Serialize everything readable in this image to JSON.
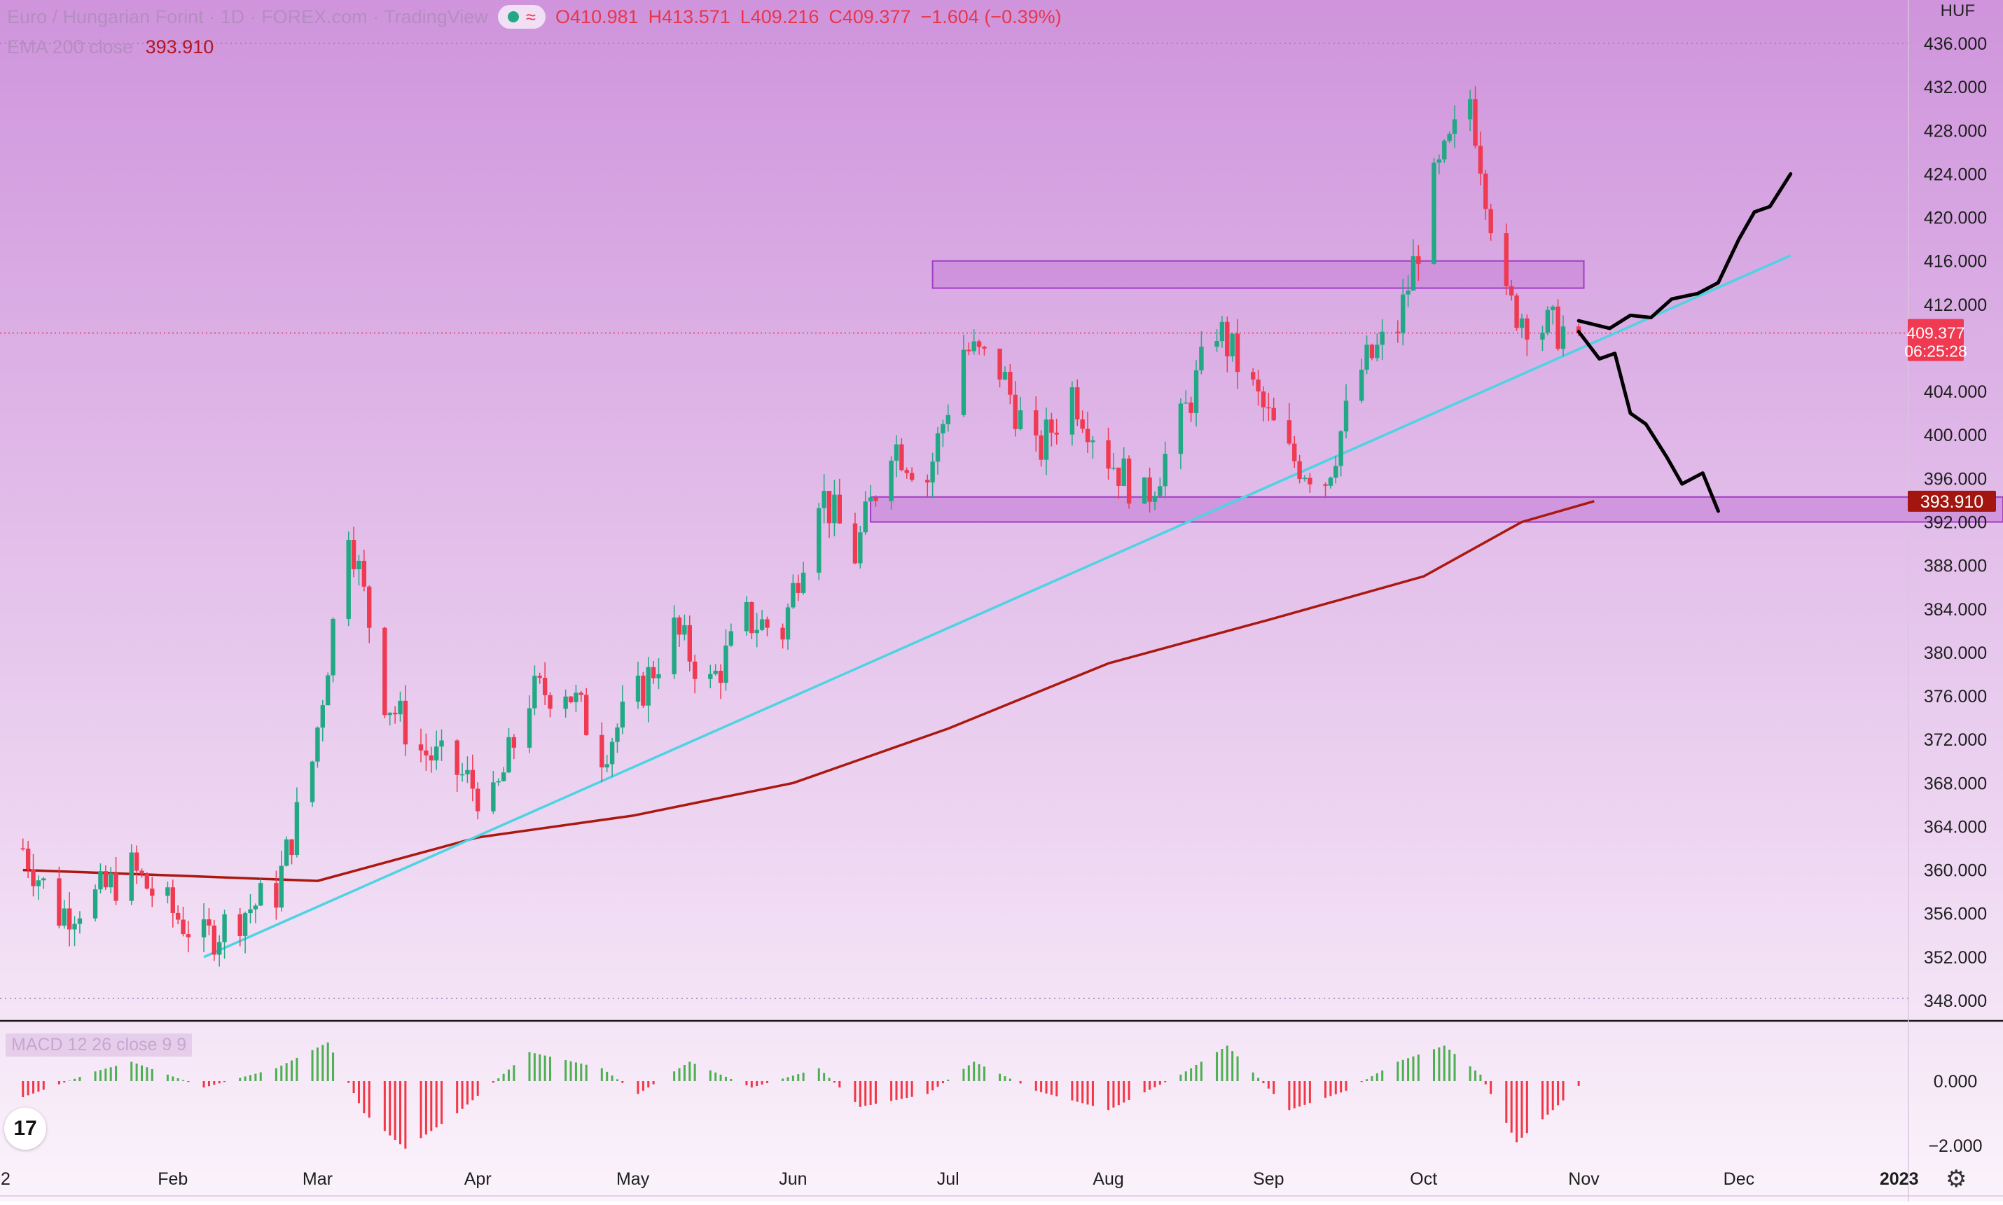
{
  "header": {
    "symbol": "Euro / Hungarian Forint · 1D · FOREX.com · TradingView",
    "open": "O410.981",
    "high": "H413.571",
    "low": "L409.216",
    "close": "C409.377",
    "change": "−1.604 (−0.39%)"
  },
  "ema": {
    "label": "EMA 200 close",
    "value": "393.910"
  },
  "macd": {
    "label": "MACD 12 26 close 9 9"
  },
  "axis": {
    "currency": "HUF"
  },
  "price_tags": {
    "last": "409.377",
    "countdown": "06:25:28",
    "ema": "393.910"
  },
  "colors": {
    "bg_top": "#cf94dc",
    "bg_bottom": "#fbf3fb",
    "up": "#22a884",
    "down": "#ef3a52",
    "ema": "#aa1810",
    "trendline": "#4ed3e2",
    "zone_fill": "#cd8fdc",
    "zone_stroke": "#a13bc4",
    "projection": "#000000"
  },
  "chart_data": {
    "type": "candlestick",
    "title": "Euro / Hungarian Forint · 1D · FOREX.com · TradingView",
    "price_axis": {
      "min": 346,
      "max": 438,
      "ticks": [
        436.0,
        432.0,
        428.0,
        424.0,
        420.0,
        416.0,
        412.0,
        404.0,
        400.0,
        396.0,
        392.0,
        388.0,
        384.0,
        380.0,
        376.0,
        372.0,
        368.0,
        364.0,
        360.0,
        356.0,
        352.0,
        348.0
      ],
      "tick_labels": [
        "436.000",
        "432.000",
        "428.000",
        "424.000",
        "420.000",
        "416.000",
        "412.000",
        "404.000",
        "400.000",
        "396.000",
        "392.000",
        "388.000",
        "384.000",
        "380.000",
        "376.000",
        "372.000",
        "368.000",
        "364.000",
        "360.000",
        "356.000",
        "352.000",
        "348.000"
      ]
    },
    "time_axis": {
      "labels": [
        {
          "label": "2",
          "date": "2022-01-01"
        },
        {
          "label": "Feb",
          "date": "2022-02-01"
        },
        {
          "label": "Mar",
          "date": "2022-03-01"
        },
        {
          "label": "Apr",
          "date": "2022-04-01"
        },
        {
          "label": "May",
          "date": "2022-05-01"
        },
        {
          "label": "Jun",
          "date": "2022-06-01"
        },
        {
          "label": "Jul",
          "date": "2022-07-01"
        },
        {
          "label": "Aug",
          "date": "2022-08-01"
        },
        {
          "label": "Sep",
          "date": "2022-09-01"
        },
        {
          "label": "Oct",
          "date": "2022-10-01"
        },
        {
          "label": "Nov",
          "date": "2022-11-01"
        },
        {
          "label": "Dec",
          "date": "2022-12-01"
        },
        {
          "label": "2023",
          "date": "2023-01-01"
        }
      ]
    },
    "close_series": [
      {
        "date": "2022-01-03",
        "close": 362.0
      },
      {
        "date": "2022-01-10",
        "close": 356.0
      },
      {
        "date": "2022-01-17",
        "close": 357.5
      },
      {
        "date": "2022-01-24",
        "close": 360.0
      },
      {
        "date": "2022-01-31",
        "close": 356.5
      },
      {
        "date": "2022-02-07",
        "close": 353.5
      },
      {
        "date": "2022-02-14",
        "close": 356.0
      },
      {
        "date": "2022-02-21",
        "close": 358.0
      },
      {
        "date": "2022-02-28",
        "close": 370.0
      },
      {
        "date": "2022-03-07",
        "close": 392.0
      },
      {
        "date": "2022-03-14",
        "close": 376.0
      },
      {
        "date": "2022-03-21",
        "close": 371.0
      },
      {
        "date": "2022-03-28",
        "close": 369.0
      },
      {
        "date": "2022-04-04",
        "close": 366.0
      },
      {
        "date": "2022-04-11",
        "close": 376.0
      },
      {
        "date": "2022-04-18",
        "close": 377.0
      },
      {
        "date": "2022-04-25",
        "close": 371.0
      },
      {
        "date": "2022-05-02",
        "close": 376.0
      },
      {
        "date": "2022-05-09",
        "close": 382.0
      },
      {
        "date": "2022-05-16",
        "close": 377.0
      },
      {
        "date": "2022-05-23",
        "close": 383.0
      },
      {
        "date": "2022-05-30",
        "close": 382.0
      },
      {
        "date": "2022-06-06",
        "close": 395.0
      },
      {
        "date": "2022-06-13",
        "close": 389.0
      },
      {
        "date": "2022-06-20",
        "close": 399.5
      },
      {
        "date": "2022-06-27",
        "close": 396.0
      },
      {
        "date": "2022-07-04",
        "close": 408.0
      },
      {
        "date": "2022-07-11",
        "close": 406.0
      },
      {
        "date": "2022-07-18",
        "close": 398.0
      },
      {
        "date": "2022-07-25",
        "close": 404.0
      },
      {
        "date": "2022-08-01",
        "close": 398.0
      },
      {
        "date": "2022-08-08",
        "close": 394.0
      },
      {
        "date": "2022-08-15",
        "close": 401.0
      },
      {
        "date": "2022-08-22",
        "close": 410.0
      },
      {
        "date": "2022-08-29",
        "close": 404.0
      },
      {
        "date": "2022-09-05",
        "close": 398.0
      },
      {
        "date": "2022-09-12",
        "close": 396.0
      },
      {
        "date": "2022-09-19",
        "close": 406.0
      },
      {
        "date": "2022-09-26",
        "close": 410.0
      },
      {
        "date": "2022-10-03",
        "close": 423.0
      },
      {
        "date": "2022-10-10",
        "close": 431.0
      },
      {
        "date": "2022-10-17",
        "close": 412.0
      },
      {
        "date": "2022-10-24",
        "close": 410.0
      },
      {
        "date": "2022-10-31",
        "close": 409.377
      }
    ],
    "ema_200": [
      {
        "date": "2022-01-03",
        "value": 360.0
      },
      {
        "date": "2022-02-01",
        "value": 359.5
      },
      {
        "date": "2022-03-01",
        "value": 359.0
      },
      {
        "date": "2022-04-01",
        "value": 363.0
      },
      {
        "date": "2022-05-01",
        "value": 365.0
      },
      {
        "date": "2022-06-01",
        "value": 368.0
      },
      {
        "date": "2022-07-01",
        "value": 373.0
      },
      {
        "date": "2022-08-01",
        "value": 379.0
      },
      {
        "date": "2022-09-01",
        "value": 383.0
      },
      {
        "date": "2022-10-01",
        "value": 387.0
      },
      {
        "date": "2022-10-20",
        "value": 392.0
      },
      {
        "date": "2022-11-03",
        "value": 393.91
      }
    ],
    "zones": [
      {
        "from": "2022-06-28",
        "to": "2022-11-01",
        "low": 413.5,
        "high": 416.0
      },
      {
        "from": "2022-06-16",
        "to": "2023-01-31",
        "low": 392.0,
        "high": 394.3
      }
    ],
    "trendline": [
      {
        "date": "2022-02-07",
        "price": 352.0
      },
      {
        "date": "2022-12-11",
        "price": 416.5
      }
    ],
    "projection_bull": [
      {
        "date": "2022-10-31",
        "price": 410.5
      },
      {
        "date": "2022-11-06",
        "price": 409.8
      },
      {
        "date": "2022-11-10",
        "price": 411.0
      },
      {
        "date": "2022-11-14",
        "price": 410.8
      },
      {
        "date": "2022-11-18",
        "price": 412.5
      },
      {
        "date": "2022-11-23",
        "price": 413.0
      },
      {
        "date": "2022-11-27",
        "price": 414.0
      },
      {
        "date": "2022-12-01",
        "price": 418.0
      },
      {
        "date": "2022-12-04",
        "price": 420.5
      },
      {
        "date": "2022-12-07",
        "price": 421.0
      },
      {
        "date": "2022-12-11",
        "price": 424.0
      }
    ],
    "projection_bear": [
      {
        "date": "2022-10-31",
        "price": 409.5
      },
      {
        "date": "2022-11-04",
        "price": 407.0
      },
      {
        "date": "2022-11-07",
        "price": 407.5
      },
      {
        "date": "2022-11-10",
        "price": 402.0
      },
      {
        "date": "2022-11-13",
        "price": 401.0
      },
      {
        "date": "2022-11-17",
        "price": 398.0
      },
      {
        "date": "2022-11-20",
        "price": 395.5
      },
      {
        "date": "2022-11-24",
        "price": 396.5
      },
      {
        "date": "2022-11-27",
        "price": 393.0
      }
    ],
    "macd_axis": {
      "ticks": [
        {
          "value": 0.0,
          "label": "0.000"
        },
        {
          "value": -2.0,
          "label": "−2.000"
        }
      ]
    },
    "macd_histogram": [
      {
        "date": "2022-01-03",
        "value": -0.5
      },
      {
        "date": "2022-01-17",
        "value": 0.3
      },
      {
        "date": "2022-01-24",
        "value": 0.6
      },
      {
        "date": "2022-02-07",
        "value": -0.2
      },
      {
        "date": "2022-02-21",
        "value": 0.4
      },
      {
        "date": "2022-03-03",
        "value": 1.2
      },
      {
        "date": "2022-03-10",
        "value": -1.0
      },
      {
        "date": "2022-03-18",
        "value": -2.1
      },
      {
        "date": "2022-03-28",
        "value": -1.0
      },
      {
        "date": "2022-04-11",
        "value": 0.9
      },
      {
        "date": "2022-04-25",
        "value": 0.4
      },
      {
        "date": "2022-05-02",
        "value": -0.4
      },
      {
        "date": "2022-05-12",
        "value": 0.6
      },
      {
        "date": "2022-05-24",
        "value": -0.2
      },
      {
        "date": "2022-06-06",
        "value": 0.4
      },
      {
        "date": "2022-06-14",
        "value": -0.8
      },
      {
        "date": "2022-06-27",
        "value": -0.4
      },
      {
        "date": "2022-07-06",
        "value": 0.6
      },
      {
        "date": "2022-07-18",
        "value": -0.3
      },
      {
        "date": "2022-08-01",
        "value": -0.9
      },
      {
        "date": "2022-08-15",
        "value": 0.2
      },
      {
        "date": "2022-08-24",
        "value": 1.1
      },
      {
        "date": "2022-09-05",
        "value": -0.9
      },
      {
        "date": "2022-09-16",
        "value": -0.3
      },
      {
        "date": "2022-09-26",
        "value": 0.6
      },
      {
        "date": "2022-10-05",
        "value": 1.1
      },
      {
        "date": "2022-10-12",
        "value": 0.2
      },
      {
        "date": "2022-10-19",
        "value": -1.9
      },
      {
        "date": "2022-10-26",
        "value": -0.9
      },
      {
        "date": "2022-11-01",
        "value": 0.0
      }
    ]
  }
}
